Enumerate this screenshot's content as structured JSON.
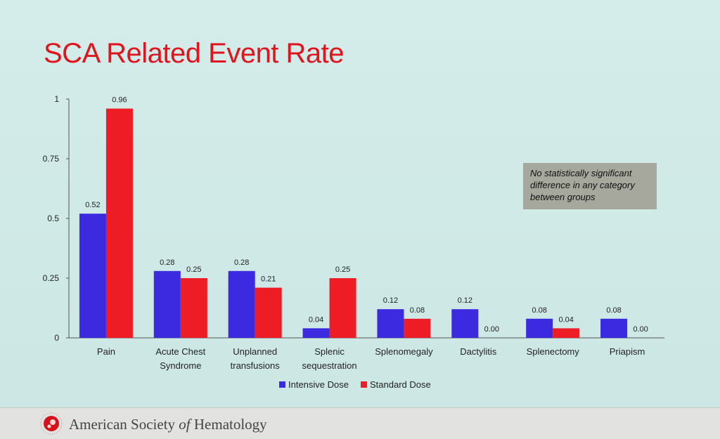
{
  "slide": {
    "title": "SCA Related Event Rate",
    "note": "No statistically significant difference in any category between groups",
    "footer": {
      "org_part1": "American Society ",
      "org_part2": "of",
      "org_part3": " Hematology",
      "logo_icon": "ash-logo-icon"
    }
  },
  "colors": {
    "title": "#e0141c",
    "intensive": "#3b2ae0",
    "standard": "#ee1c24",
    "axis": "#444444"
  },
  "chart_data": {
    "type": "bar",
    "title": "",
    "xlabel": "",
    "ylabel": "",
    "ylim": [
      0,
      1
    ],
    "yticks": [
      "0",
      "0.25",
      "0.5",
      "0.75",
      "1"
    ],
    "ytick_values": [
      0,
      0.25,
      0.5,
      0.75,
      1
    ],
    "grid": false,
    "legend_position": "bottom",
    "categories": [
      [
        "Pain"
      ],
      [
        "Acute Chest",
        "Syndrome"
      ],
      [
        "Unplanned",
        "transfusions"
      ],
      [
        "Splenic",
        "sequestration"
      ],
      [
        "Splenomegaly"
      ],
      [
        "Dactylitis"
      ],
      [
        "Splenectomy"
      ],
      [
        "Priapism"
      ]
    ],
    "series": [
      {
        "name": "Intensive Dose",
        "color": "#3b2ae0",
        "values": [
          0.52,
          0.28,
          0.28,
          0.04,
          0.12,
          0.12,
          0.08,
          0.08
        ],
        "labels": [
          "0.52",
          "0.28",
          "0.28",
          "0.04",
          "0.12",
          "0.12",
          "0.08",
          "0.08"
        ]
      },
      {
        "name": "Standard Dose",
        "color": "#ee1c24",
        "values": [
          0.96,
          0.25,
          0.21,
          0.25,
          0.08,
          0.0,
          0.04,
          0.0
        ],
        "labels": [
          "0.96",
          "0.25",
          "0.21",
          "0.25",
          "0.08",
          "0.00",
          "0.04",
          "0.00"
        ]
      }
    ]
  }
}
